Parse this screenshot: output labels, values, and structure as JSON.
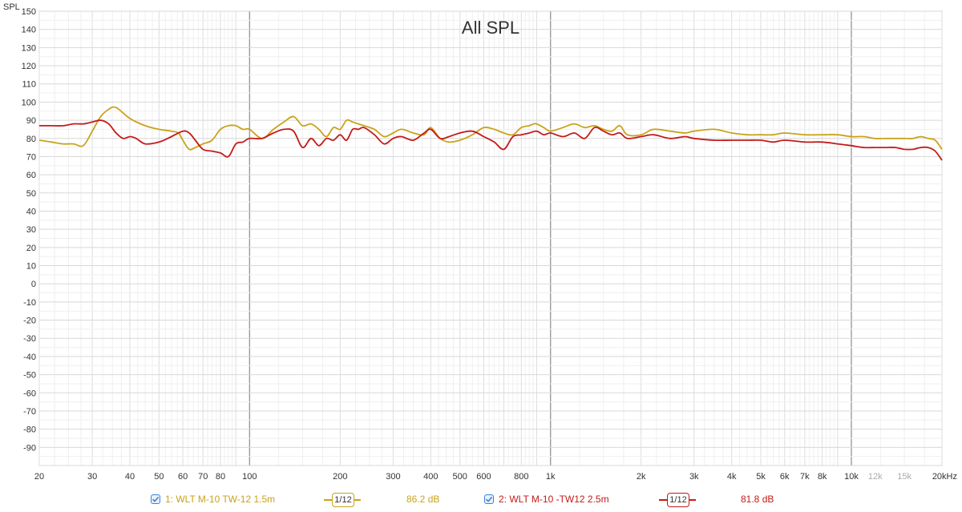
{
  "chart_data": {
    "type": "line",
    "title": "All SPL",
    "ylabel": "SPL",
    "xlabel": "",
    "x_scale": "log",
    "xlim": [
      20,
      20000
    ],
    "ylim": [
      -100,
      150
    ],
    "yticks": [
      150,
      140,
      130,
      120,
      110,
      100,
      90,
      80,
      70,
      60,
      50,
      40,
      30,
      20,
      10,
      0,
      -10,
      -20,
      -30,
      -40,
      -50,
      -60,
      -70,
      -80,
      -90
    ],
    "ytick_labels": [
      "150",
      "140",
      "130",
      "120",
      "110",
      "100",
      "90",
      "80",
      "70",
      "60",
      "50",
      "40",
      "30",
      "20",
      "10",
      "0",
      "-10",
      "-20",
      "-30",
      "-40",
      "-50",
      "-60",
      "-70",
      "-80",
      "-90"
    ],
    "xticks": [
      20,
      30,
      40,
      50,
      60,
      70,
      80,
      100,
      200,
      300,
      400,
      500,
      600,
      800,
      1000,
      2000,
      3000,
      4000,
      5000,
      6000,
      7000,
      8000,
      10000,
      12000,
      15000,
      20000
    ],
    "xtick_labels": [
      "20",
      "30",
      "40",
      "50",
      "60",
      "70",
      "80",
      "100",
      "200",
      "300",
      "400",
      "500",
      "600",
      "800",
      "1k",
      "2k",
      "3k",
      "4k",
      "5k",
      "6k",
      "7k",
      "8k",
      "10k",
      "12k",
      "15k",
      "20kHz"
    ],
    "grid": true,
    "colors": {
      "series1": "#c9a31a",
      "series2": "#c41a1a"
    },
    "series": [
      {
        "name": "1: WLT M-10 TW-12 1.5m",
        "x": [
          20,
          22,
          24,
          26,
          28,
          30,
          32,
          34,
          36,
          40,
          45,
          50,
          55,
          58,
          60,
          63,
          66,
          70,
          75,
          80,
          85,
          90,
          95,
          100,
          110,
          120,
          130,
          140,
          150,
          160,
          170,
          180,
          190,
          200,
          210,
          220,
          230,
          240,
          260,
          280,
          300,
          320,
          350,
          380,
          400,
          430,
          460,
          500,
          550,
          600,
          650,
          700,
          750,
          800,
          850,
          880,
          900,
          950,
          1000,
          1100,
          1200,
          1300,
          1400,
          1500,
          1600,
          1700,
          1800,
          2000,
          2200,
          2500,
          2800,
          3000,
          3500,
          4000,
          4500,
          5000,
          5500,
          6000,
          7000,
          8000,
          9000,
          10000,
          11000,
          12000,
          13000,
          14000,
          15000,
          16000,
          17000,
          18000,
          19000,
          20000
        ],
        "values": [
          79,
          78,
          77,
          77,
          76,
          84,
          92,
          96,
          97,
          91,
          87,
          85,
          84,
          83,
          79,
          74,
          75,
          77,
          79,
          85,
          87,
          87,
          85,
          85,
          80,
          85,
          89,
          92,
          87,
          88,
          85,
          81,
          86,
          85,
          90,
          89,
          88,
          87,
          85,
          81,
          83,
          85,
          83,
          82,
          86,
          80,
          78,
          79,
          82,
          86,
          85,
          83,
          82,
          86,
          87,
          88,
          88,
          86,
          84,
          86,
          88,
          86,
          87,
          85,
          84,
          87,
          82,
          82,
          85,
          84,
          83,
          84,
          85,
          83,
          82,
          82,
          82,
          83,
          82,
          82,
          82,
          81,
          81,
          80,
          80,
          80,
          80,
          80,
          81,
          80,
          79,
          74
        ]
      },
      {
        "name": "2: WLT M-10 -TW12 2.5m",
        "x": [
          20,
          22,
          24,
          26,
          28,
          30,
          32,
          34,
          36,
          38,
          40,
          42,
          45,
          50,
          55,
          60,
          63,
          66,
          70,
          75,
          80,
          85,
          90,
          95,
          100,
          110,
          120,
          130,
          140,
          150,
          160,
          170,
          180,
          190,
          200,
          210,
          220,
          230,
          240,
          260,
          280,
          300,
          320,
          350,
          380,
          400,
          430,
          460,
          500,
          550,
          600,
          650,
          700,
          750,
          800,
          850,
          900,
          950,
          1000,
          1100,
          1200,
          1300,
          1400,
          1500,
          1600,
          1700,
          1800,
          2000,
          2200,
          2500,
          2800,
          3000,
          3500,
          4000,
          4500,
          5000,
          5500,
          6000,
          7000,
          8000,
          9000,
          10000,
          11000,
          12000,
          13000,
          14000,
          15000,
          16000,
          17000,
          18000,
          19000,
          20000
        ],
        "values": [
          87,
          87,
          87,
          88,
          88,
          89,
          90,
          88,
          83,
          80,
          81,
          80,
          77,
          78,
          81,
          84,
          83,
          79,
          74,
          73,
          72,
          70,
          77,
          78,
          80,
          80,
          83,
          85,
          84,
          75,
          80,
          76,
          80,
          79,
          82,
          79,
          85,
          85,
          86,
          82,
          77,
          80,
          81,
          79,
          83,
          85,
          80,
          81,
          83,
          84,
          81,
          78,
          74,
          81,
          82,
          83,
          84,
          82,
          83,
          81,
          83,
          80,
          86,
          84,
          82,
          83,
          80,
          81,
          82,
          80,
          81,
          80,
          79,
          79,
          79,
          79,
          78,
          79,
          78,
          78,
          77,
          76,
          75,
          75,
          75,
          75,
          74,
          74,
          75,
          75,
          73,
          68
        ]
      }
    ],
    "legend": [
      {
        "name": "1: WLT M-10 TW-12 1.5m",
        "smoothing": "1/12",
        "level": "86.2 dB"
      },
      {
        "name": "2: WLT M-10 -TW12 2.5m",
        "smoothing": "1/12",
        "level": "81.8 dB"
      }
    ]
  }
}
